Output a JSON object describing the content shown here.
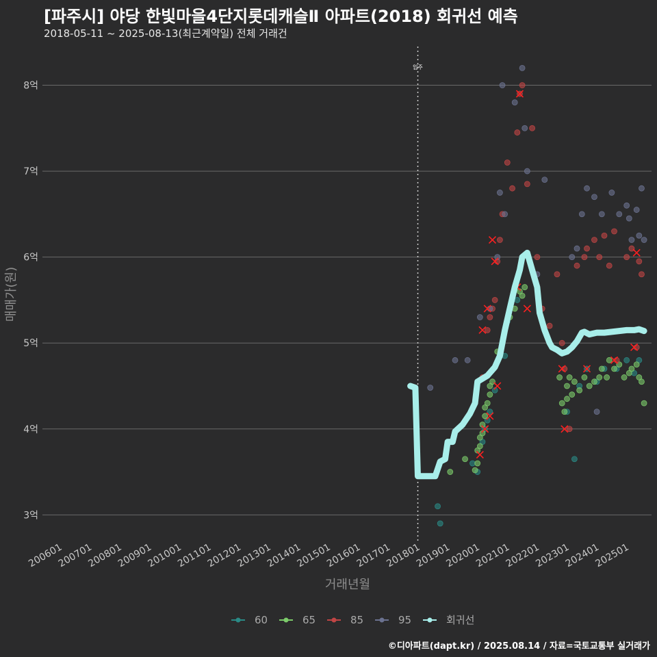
{
  "header": {
    "title": "[파주시] 야당 한빛마을4단지롯데캐슬Ⅱ 아파트(2018) 회귀선 예측",
    "subtitle": "2018-05-11 ~ 2025-08-13(최근계약일) 전체 거래건"
  },
  "footer": {
    "credit": "©디아파트(dapt.kr) / 2025.08.14 / 자료=국토교통부 실거래가"
  },
  "colors": {
    "background": "#2b2b2c",
    "grid": "#6a6a6a",
    "s60": "#2a8a86",
    "s65": "#7ccb6a",
    "s85": "#c04545",
    "s95": "#6b7290",
    "trend": "#a8eeea",
    "mark": "#ff2020"
  },
  "chart_data": {
    "type": "scatter",
    "title": "[파주시] 야당 한빛마을4단지롯데캐슬Ⅱ 아파트(2018) 회귀선 예측",
    "subtitle": "2018-05-11 ~ 2025-08-13(최근계약일) 전체 거래건",
    "xlabel": "거래년월",
    "ylabel": "매매가(원)",
    "x_ticks": [
      "200601",
      "200701",
      "200801",
      "200901",
      "201001",
      "201101",
      "201201",
      "201301",
      "201401",
      "201501",
      "201601",
      "201701",
      "201801",
      "201901",
      "202001",
      "202101",
      "202201",
      "202301",
      "202401",
      "202501"
    ],
    "y_ticks": [
      {
        "value": 3,
        "label": "3억"
      },
      {
        "value": 4,
        "label": "4억"
      },
      {
        "value": 5,
        "label": "5억"
      },
      {
        "value": 6,
        "label": "6억"
      },
      {
        "value": 7,
        "label": "7억"
      },
      {
        "value": 8,
        "label": "8억"
      }
    ],
    "xlim": [
      "2005-06",
      "2025-11"
    ],
    "ylim": [
      2.7,
      8.45
    ],
    "y_unit": "억",
    "vline": {
      "x": "2018-01",
      "label": "입주"
    },
    "legend": {
      "position": "bottom",
      "items": [
        "60",
        "65",
        "85",
        "95",
        "회귀선"
      ]
    },
    "series": [
      {
        "name": "60",
        "type": "scatter",
        "color": "#2a8a86",
        "points": [
          [
            "2018-10",
            2.9
          ],
          [
            "2018-09",
            3.1
          ],
          [
            "2019-11",
            3.6
          ],
          [
            "2020-01",
            3.5
          ],
          [
            "2020-03",
            3.85
          ],
          [
            "2020-04",
            4.0
          ],
          [
            "2020-05",
            4.1
          ],
          [
            "2020-06",
            4.2
          ],
          [
            "2020-08",
            4.45
          ],
          [
            "2020-12",
            4.85
          ],
          [
            "2021-01",
            5.25
          ],
          [
            "2021-05",
            5.5
          ],
          [
            "2023-04",
            3.65
          ],
          [
            "2023-01",
            4.2
          ],
          [
            "2023-06",
            4.5
          ],
          [
            "2023-09",
            4.7
          ],
          [
            "2024-01",
            4.55
          ],
          [
            "2024-04",
            4.7
          ],
          [
            "2024-09",
            4.7
          ],
          [
            "2025-01",
            4.8
          ],
          [
            "2025-04",
            4.65
          ],
          [
            "2025-06",
            4.8
          ]
        ]
      },
      {
        "name": "65",
        "type": "scatter",
        "color": "#7ccb6a",
        "points": [
          [
            "2019-02",
            3.5
          ],
          [
            "2019-08",
            3.65
          ],
          [
            "2019-12",
            3.52
          ],
          [
            "2020-01",
            3.6
          ],
          [
            "2020-01",
            3.75
          ],
          [
            "2020-02",
            3.8
          ],
          [
            "2020-02",
            3.9
          ],
          [
            "2020-03",
            3.95
          ],
          [
            "2020-03",
            4.05
          ],
          [
            "2020-04",
            4.15
          ],
          [
            "2020-04",
            4.25
          ],
          [
            "2020-05",
            4.3
          ],
          [
            "2020-06",
            4.4
          ],
          [
            "2020-06",
            4.5
          ],
          [
            "2020-07",
            4.55
          ],
          [
            "2020-09",
            4.9
          ],
          [
            "2020-11",
            5.0
          ],
          [
            "2021-02",
            5.3
          ],
          [
            "2021-04",
            5.4
          ],
          [
            "2021-06",
            5.6
          ],
          [
            "2021-07",
            5.55
          ],
          [
            "2021-08",
            5.65
          ],
          [
            "2022-10",
            4.6
          ],
          [
            "2022-11",
            4.3
          ],
          [
            "2022-12",
            4.2
          ],
          [
            "2023-01",
            4.35
          ],
          [
            "2023-01",
            4.5
          ],
          [
            "2023-02",
            4.6
          ],
          [
            "2023-03",
            4.4
          ],
          [
            "2023-04",
            4.55
          ],
          [
            "2023-06",
            4.45
          ],
          [
            "2023-08",
            4.6
          ],
          [
            "2023-10",
            4.5
          ],
          [
            "2023-12",
            4.55
          ],
          [
            "2024-02",
            4.6
          ],
          [
            "2024-03",
            4.7
          ],
          [
            "2024-05",
            4.6
          ],
          [
            "2024-06",
            4.8
          ],
          [
            "2024-08",
            4.7
          ],
          [
            "2024-10",
            4.75
          ],
          [
            "2024-12",
            4.6
          ],
          [
            "2025-02",
            4.65
          ],
          [
            "2025-03",
            4.7
          ],
          [
            "2025-05",
            4.75
          ],
          [
            "2025-06",
            4.6
          ],
          [
            "2025-07",
            4.55
          ],
          [
            "2025-08",
            4.3
          ]
        ]
      },
      {
        "name": "85",
        "type": "scatter",
        "color": "#c04545",
        "points": [
          [
            "2020-03",
            4.6
          ],
          [
            "2020-05",
            5.15
          ],
          [
            "2020-06",
            5.3
          ],
          [
            "2020-07",
            5.4
          ],
          [
            "2020-08",
            5.5
          ],
          [
            "2020-09",
            5.95
          ],
          [
            "2020-10",
            6.2
          ],
          [
            "2020-11",
            6.5
          ],
          [
            "2021-01",
            7.1
          ],
          [
            "2021-03",
            6.8
          ],
          [
            "2021-05",
            7.45
          ],
          [
            "2021-06",
            7.9
          ],
          [
            "2021-07",
            8.0
          ],
          [
            "2021-09",
            6.85
          ],
          [
            "2021-11",
            7.5
          ],
          [
            "2022-01",
            6.0
          ],
          [
            "2022-03",
            5.4
          ],
          [
            "2022-06",
            5.2
          ],
          [
            "2022-09",
            5.8
          ],
          [
            "2022-11",
            5.0
          ],
          [
            "2022-12",
            4.7
          ],
          [
            "2023-02",
            4.0
          ],
          [
            "2023-05",
            5.9
          ],
          [
            "2023-08",
            6.0
          ],
          [
            "2023-09",
            6.1
          ],
          [
            "2023-12",
            6.2
          ],
          [
            "2024-02",
            6.0
          ],
          [
            "2024-04",
            6.25
          ],
          [
            "2024-06",
            5.9
          ],
          [
            "2024-08",
            6.3
          ],
          [
            "2024-09",
            4.8
          ],
          [
            "2025-01",
            6.0
          ],
          [
            "2025-03",
            6.1
          ],
          [
            "2025-05",
            4.95
          ],
          [
            "2025-06",
            5.95
          ],
          [
            "2025-07",
            5.8
          ]
        ]
      },
      {
        "name": "95",
        "type": "scatter",
        "color": "#6b7290",
        "points": [
          [
            "2018-06",
            4.48
          ],
          [
            "2019-04",
            4.8
          ],
          [
            "2019-09",
            4.8
          ],
          [
            "2020-02",
            5.3
          ],
          [
            "2020-06",
            5.4
          ],
          [
            "2020-09",
            6.0
          ],
          [
            "2020-10",
            6.75
          ],
          [
            "2020-12",
            6.5
          ],
          [
            "2020-11",
            8.0
          ],
          [
            "2021-04",
            7.8
          ],
          [
            "2021-07",
            8.2
          ],
          [
            "2021-08",
            7.5
          ],
          [
            "2021-09",
            7.0
          ],
          [
            "2022-01",
            5.8
          ],
          [
            "2022-04",
            6.9
          ],
          [
            "2023-03",
            6.0
          ],
          [
            "2023-05",
            6.1
          ],
          [
            "2023-07",
            6.5
          ],
          [
            "2023-09",
            6.8
          ],
          [
            "2023-12",
            6.7
          ],
          [
            "2024-01",
            4.2
          ],
          [
            "2024-03",
            6.5
          ],
          [
            "2024-07",
            6.75
          ],
          [
            "2024-10",
            6.5
          ],
          [
            "2025-01",
            6.6
          ],
          [
            "2025-02",
            6.45
          ],
          [
            "2025-03",
            6.2
          ],
          [
            "2025-05",
            6.55
          ],
          [
            "2025-06",
            6.25
          ],
          [
            "2025-07",
            6.8
          ],
          [
            "2025-08",
            6.2
          ]
        ]
      },
      {
        "name": "회귀선",
        "type": "line",
        "color": "#a8eeea",
        "points": [
          [
            "2017-10",
            4.5
          ],
          [
            "2017-12",
            4.48
          ],
          [
            "2018-01",
            3.45
          ],
          [
            "2018-05",
            3.45
          ],
          [
            "2018-08",
            3.45
          ],
          [
            "2018-10",
            3.62
          ],
          [
            "2018-12",
            3.65
          ],
          [
            "2019-01",
            3.85
          ],
          [
            "2019-03",
            3.85
          ],
          [
            "2019-04",
            3.97
          ],
          [
            "2019-07",
            4.05
          ],
          [
            "2019-10",
            4.18
          ],
          [
            "2019-12",
            4.3
          ],
          [
            "2020-01",
            4.55
          ],
          [
            "2020-05",
            4.62
          ],
          [
            "2020-08",
            4.72
          ],
          [
            "2020-10",
            4.85
          ],
          [
            "2020-12",
            5.15
          ],
          [
            "2021-02",
            5.4
          ],
          [
            "2021-04",
            5.65
          ],
          [
            "2021-06",
            5.85
          ],
          [
            "2021-07",
            6.0
          ],
          [
            "2021-09",
            6.05
          ],
          [
            "2021-11",
            5.85
          ],
          [
            "2022-01",
            5.65
          ],
          [
            "2022-02",
            5.35
          ],
          [
            "2022-04",
            5.15
          ],
          [
            "2022-06",
            5.0
          ],
          [
            "2022-07",
            4.95
          ],
          [
            "2022-09",
            4.92
          ],
          [
            "2022-11",
            4.88
          ],
          [
            "2023-01",
            4.9
          ],
          [
            "2023-03",
            4.95
          ],
          [
            "2023-05",
            5.02
          ],
          [
            "2023-07",
            5.12
          ],
          [
            "2023-08",
            5.13
          ],
          [
            "2023-10",
            5.1
          ],
          [
            "2024-01",
            5.12
          ],
          [
            "2024-04",
            5.12
          ],
          [
            "2024-07",
            5.13
          ],
          [
            "2024-10",
            5.14
          ],
          [
            "2025-01",
            5.15
          ],
          [
            "2025-04",
            5.15
          ],
          [
            "2025-06",
            5.16
          ],
          [
            "2025-08",
            5.14
          ]
        ]
      }
    ],
    "highlighted_points": [
      [
        "2020-02",
        3.7
      ],
      [
        "2020-04",
        4.0
      ],
      [
        "2020-06",
        4.15
      ],
      [
        "2020-09",
        4.5
      ],
      [
        "2020-03",
        5.15
      ],
      [
        "2020-05",
        5.4
      ],
      [
        "2020-08",
        5.95
      ],
      [
        "2020-07",
        6.2
      ],
      [
        "2021-05",
        5.65
      ],
      [
        "2021-06",
        7.9
      ],
      [
        "2021-09",
        5.4
      ],
      [
        "2022-11",
        4.7
      ],
      [
        "2022-12",
        4.0
      ],
      [
        "2023-09",
        4.7
      ],
      [
        "2024-08",
        4.8
      ],
      [
        "2025-04",
        4.95
      ],
      [
        "2025-05",
        6.05
      ]
    ]
  }
}
